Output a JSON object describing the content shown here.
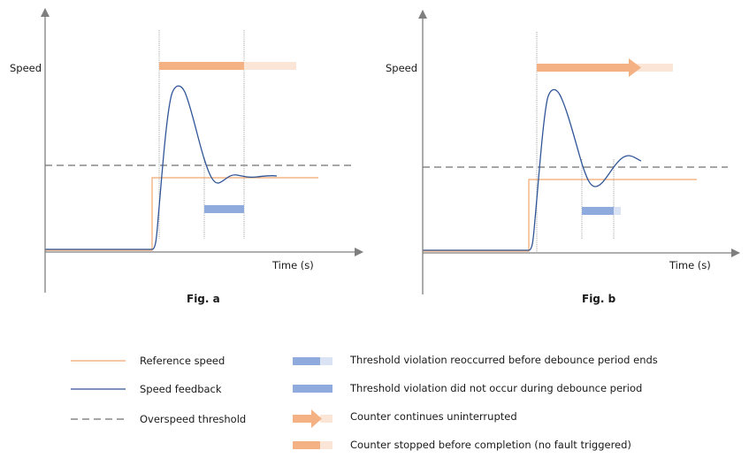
{
  "colors": {
    "axis": "#7f7f7f",
    "reference": "#f4b183",
    "reference_line": "#f0a870",
    "feedback": "#2f5597",
    "threshold": "#a6a6a6",
    "blue_bar": "#8faadc",
    "blue_bar_light": "#dae3f3",
    "orange_bar": "#f4b183",
    "orange_bar_light": "#fbe5d6",
    "marker": "#a6a6a6"
  },
  "figures": [
    {
      "id": "a",
      "caption": "Fig. a",
      "y_label": "Speed",
      "x_label": "Time (s)",
      "counter": "stopped",
      "debounce": "no-violation"
    },
    {
      "id": "b",
      "caption": "Fig. b",
      "y_label": "Speed",
      "x_label": "Time (s)",
      "counter": "continues",
      "debounce": "violation-reoccurred"
    }
  ],
  "legend": {
    "left": [
      {
        "key": "reference",
        "label": "Reference speed"
      },
      {
        "key": "feedback",
        "label": "Speed feedback"
      },
      {
        "key": "threshold",
        "label": "Overspeed threshold"
      }
    ],
    "right": [
      {
        "key": "blue-partial",
        "label": "Threshold violation reoccurred before debounce period ends"
      },
      {
        "key": "blue-full",
        "label": "Threshold violation did not occur during debounce period"
      },
      {
        "key": "orange-arrow",
        "label": "Counter continues uninterrupted"
      },
      {
        "key": "orange-partial",
        "label": "Counter stopped before completion (no fault triggered)"
      }
    ]
  }
}
